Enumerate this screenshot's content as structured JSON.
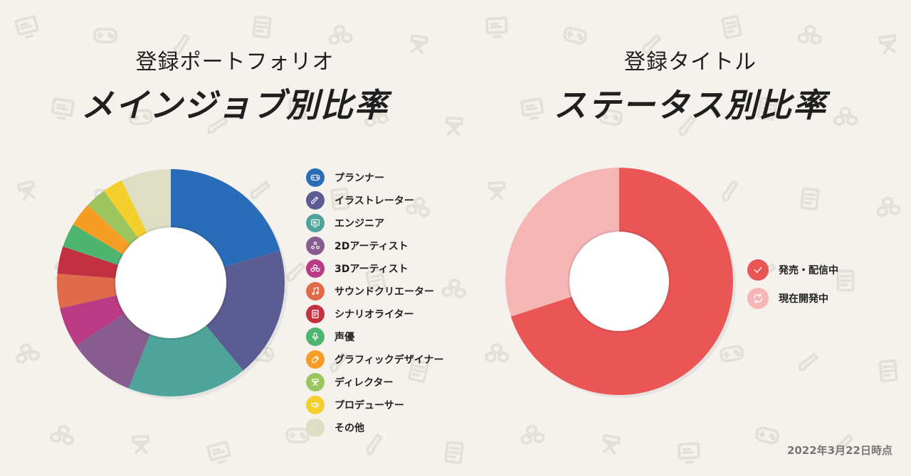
{
  "colors": {
    "background": "#f5f2ee",
    "pattern": "#e6e1da"
  },
  "left": {
    "subtitle": "登録ポートフォリオ",
    "title": "メインジョブ別比率"
  },
  "right": {
    "subtitle": "登録タイトル",
    "title": "ステータス別比率"
  },
  "date_note": "2022年3月22日時点",
  "chart_data": [
    {
      "type": "pie",
      "donut": true,
      "title": "メインジョブ別比率",
      "categories": [
        "プランナー",
        "イラストレーター",
        "エンジニア",
        "2Dアーティスト",
        "3Dアーティスト",
        "サウンドクリエーター",
        "シナリオライター",
        "声優",
        "グラフィックデザイナー",
        "ディレクター",
        "プロデューサー",
        "その他"
      ],
      "values": [
        20.4,
        18.6,
        17.0,
        9.6,
        5.7,
        4.9,
        3.9,
        3.4,
        3.4,
        3.0,
        2.9,
        7.1
      ],
      "colors": [
        "#2a6cb8",
        "#5c5c95",
        "#4ea39a",
        "#875c8e",
        "#b93b84",
        "#df6b4a",
        "#c33042",
        "#4eb570",
        "#f59d25",
        "#9cc45f",
        "#f4d02c",
        "#dddfc4"
      ],
      "icons": [
        "gamepad-icon",
        "brush-icon",
        "monitor-icon",
        "palette-icon",
        "cubes-icon",
        "music-note-icon",
        "document-icon",
        "microphone-icon",
        "pen-icon",
        "director-chair-icon",
        "megaphone-icon",
        "dots-icon"
      ],
      "legend": "right"
    },
    {
      "type": "pie",
      "donut": true,
      "title": "ステータス別比率",
      "categories": [
        "発売・配信中",
        "現在開発中"
      ],
      "values": [
        70,
        30
      ],
      "colors": [
        "#ea5656",
        "#f7b6b6"
      ],
      "icons": [
        "check-icon",
        "refresh-icon"
      ],
      "legend": "right"
    }
  ]
}
